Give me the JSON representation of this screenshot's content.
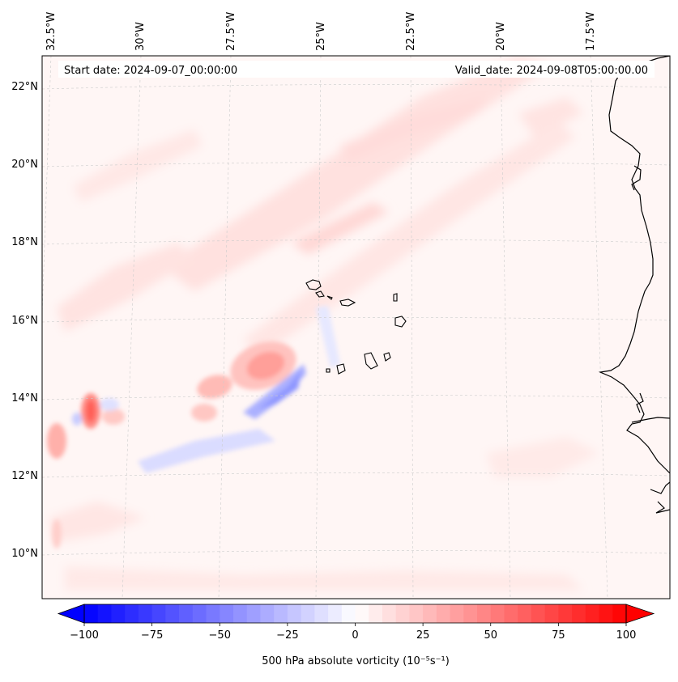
{
  "header": {
    "start_date": "Start date: 2024-09-07_00:00:00",
    "valid_date": "Valid_date: 2024-09-08T05:00:00.00"
  },
  "longitude_labels": [
    "32.5°W",
    "30°W",
    "27.5°W",
    "25°W",
    "22.5°W",
    "20°W",
    "17.5°W"
  ],
  "latitude_labels": [
    "22°N",
    "20°N",
    "18°N",
    "16°N",
    "14°N",
    "12°N",
    "10°N"
  ],
  "colorbar": {
    "label": "500 hPa absolute vorticity (10⁻⁵s⁻¹)",
    "min": -100,
    "max": 100,
    "ticks": [
      -100,
      -75,
      -50,
      -25,
      0,
      25,
      50,
      75,
      100
    ],
    "tick_labels": [
      "−100",
      "−75",
      "−50",
      "−25",
      "0",
      "25",
      "50",
      "75",
      "100"
    ],
    "colormap": "bwr",
    "extend": "both"
  },
  "colors": {
    "negative": "#0000ff",
    "zero": "#ffffff",
    "positive": "#ff0000",
    "coastline": "#000000",
    "gridline": "#bbbbbb"
  }
}
